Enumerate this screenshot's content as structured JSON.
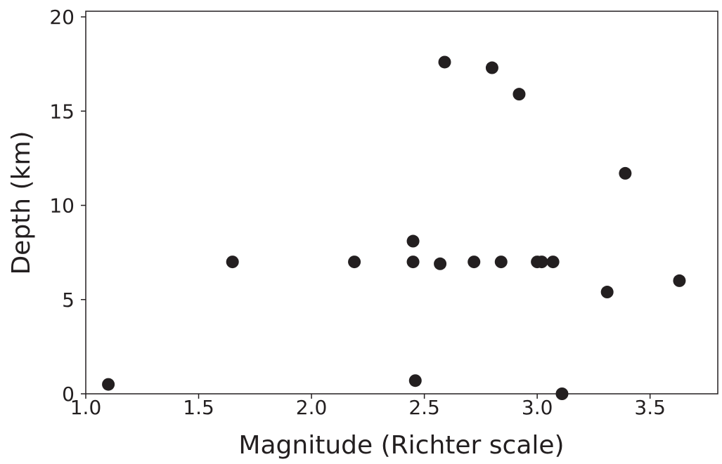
{
  "chart_data": {
    "type": "scatter",
    "title": "",
    "xlabel": "Magnitude (Richter scale)",
    "ylabel": "Depth (km)",
    "xlim": [
      1.0,
      3.8
    ],
    "ylim": [
      0,
      20.3
    ],
    "x_ticks": [
      1.0,
      1.5,
      2.0,
      2.5,
      3.0,
      3.5
    ],
    "x_tick_labels": [
      "1.0",
      "1.5",
      "2.0",
      "2.5",
      "3.0",
      "3.5"
    ],
    "y_ticks": [
      0,
      5,
      10,
      15,
      20
    ],
    "y_tick_labels": [
      "0",
      "5",
      "10",
      "15",
      "20"
    ],
    "grid": false,
    "marker_color": "#231f20",
    "series": [
      {
        "x": [
          1.1,
          1.65,
          2.19,
          2.45,
          2.45,
          2.46,
          2.57,
          2.59,
          2.72,
          2.8,
          2.84,
          2.92,
          3.0,
          3.02,
          3.07,
          3.11,
          3.31,
          3.39,
          3.63
        ],
        "y": [
          0.5,
          7.0,
          7.0,
          8.1,
          7.0,
          0.7,
          6.9,
          17.6,
          7.0,
          17.3,
          7.0,
          15.9,
          7.0,
          7.0,
          7.0,
          0.0,
          5.4,
          11.7,
          6.0
        ]
      }
    ]
  }
}
